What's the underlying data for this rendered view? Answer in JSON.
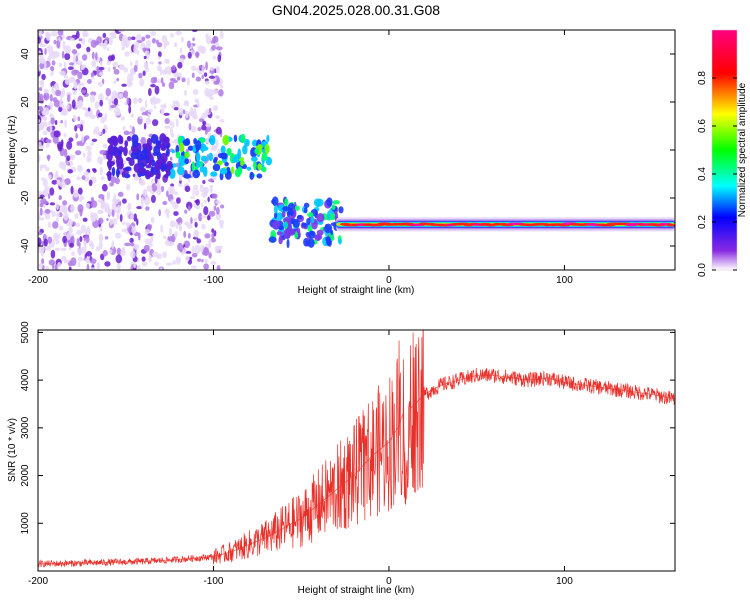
{
  "title": "GN04.2025.028.00.31.G08",
  "chart_data": [
    {
      "type": "heatmap",
      "xlabel": "Height of straight line (km)",
      "ylabel": "Frequency (Hz)",
      "xlim": [
        -200,
        163
      ],
      "ylim": [
        -50,
        50
      ],
      "x_ticks": [
        -200,
        -100,
        0,
        100
      ],
      "y_ticks": [
        -40,
        -20,
        0,
        20,
        40
      ],
      "colorbar": {
        "label": "Normalized spectral amplitude",
        "range": [
          0,
          1
        ],
        "ticks": [
          "0.0",
          "0.2",
          "0.4",
          "0.6",
          "0.8"
        ],
        "colors": [
          "#ffffff",
          "#8a2be2",
          "#0000ff",
          "#00ffff",
          "#00ff00",
          "#ffff00",
          "#ff0000",
          "#ff00ff"
        ]
      },
      "features": [
        {
          "name": "scatter-noise",
          "x_range": [
            -200,
            -100
          ],
          "y_range": [
            -50,
            50
          ],
          "amplitude": 0.1
        },
        {
          "name": "blob-cluster",
          "x_range": [
            -160,
            -68
          ],
          "y_center": -3,
          "amplitude": 0.3
        },
        {
          "name": "cluster-lower",
          "x_range": [
            -67,
            -30
          ],
          "y_center": -30,
          "amplitude": 0.3
        },
        {
          "name": "signal-line",
          "x_range": [
            -30,
            163
          ],
          "y": -31,
          "amplitude": 0.95
        }
      ]
    },
    {
      "type": "line",
      "xlabel": "Height of straight line (km)",
      "ylabel": "SNR (10 * v/v)",
      "xlim": [
        -200,
        163
      ],
      "ylim": [
        0,
        5050
      ],
      "x_ticks": [
        -200,
        -100,
        0,
        100
      ],
      "y_ticks": [
        1000,
        2000,
        3000,
        4000,
        5000
      ],
      "color": "#e8302a",
      "x": [
        -200,
        -180,
        -160,
        -140,
        -120,
        -100,
        -90,
        -80,
        -70,
        -60,
        -50,
        -40,
        -30,
        -20,
        -10,
        0,
        5,
        8,
        10,
        12,
        15,
        20,
        30,
        40,
        50,
        60,
        70,
        80,
        90,
        100,
        110,
        120,
        130,
        140,
        150,
        163
      ],
      "values": [
        150,
        160,
        180,
        200,
        240,
        300,
        400,
        550,
        700,
        900,
        1100,
        1400,
        1700,
        2000,
        2400,
        2700,
        3000,
        3300,
        1500,
        3400,
        3500,
        3700,
        3900,
        4000,
        4100,
        4100,
        4050,
        4000,
        4050,
        3950,
        3900,
        3850,
        3800,
        3750,
        3700,
        3600
      ]
    }
  ]
}
